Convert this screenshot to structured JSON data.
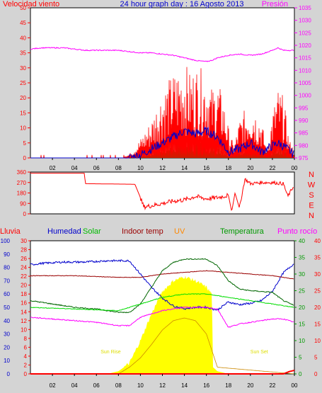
{
  "chart_data": [
    {
      "type": "line",
      "panel": "top",
      "title": "24 hour graph day : 16 Agosto 2013",
      "left_label": "Velocidad viento",
      "right_label": "Presión",
      "x_ticks": [
        "02",
        "04",
        "06",
        "08",
        "10",
        "12",
        "14",
        "16",
        "18",
        "20",
        "22",
        "00"
      ],
      "left_ticks": [
        "0",
        "5",
        "10",
        "15",
        "20",
        "25",
        "30",
        "35",
        "40",
        "45",
        "50"
      ],
      "right_ticks": [
        "975",
        "980",
        "985",
        "990",
        "995",
        "1000",
        "1005",
        "1010",
        "1015",
        "1020",
        "1025",
        "1030",
        "1035"
      ],
      "ylim_left": [
        0,
        50
      ],
      "ylim_right": [
        975,
        1035
      ],
      "colors": {
        "gust": "#ff0000",
        "wind": "#0000cc",
        "calm": "#009900",
        "pressure": "#ff00ff"
      },
      "series": [
        {
          "key": "pressure",
          "x": [
            0,
            1,
            2,
            3,
            4,
            5,
            6,
            7,
            8,
            9,
            10,
            11,
            12,
            13,
            14,
            15,
            15.5,
            16,
            16.5,
            17,
            18,
            19,
            20,
            21,
            22,
            22.5,
            23,
            24
          ],
          "values": [
            1018.5,
            1019,
            1019,
            1019,
            1018.5,
            1018,
            1018,
            1018,
            1018,
            1017.5,
            1017,
            1017,
            1016.5,
            1016,
            1015,
            1014,
            1013.7,
            1013.5,
            1014,
            1015,
            1016,
            1016.5,
            1016,
            1016.5,
            1018,
            1019,
            1018,
            1018
          ]
        },
        {
          "key": "gust",
          "x": [
            0,
            8,
            9,
            9.5,
            10,
            11,
            12,
            13,
            14,
            14.5,
            15,
            16,
            16.5,
            17,
            17.5,
            18,
            18.5,
            19,
            20,
            21,
            21.5,
            22,
            22.5,
            23,
            23.5,
            24
          ],
          "values": [
            0,
            0,
            1,
            3,
            5,
            10,
            18,
            22,
            25,
            22,
            24,
            22,
            18,
            20,
            16,
            8,
            3,
            10,
            15,
            10,
            2,
            12,
            18,
            16,
            5,
            2
          ]
        },
        {
          "key": "wind",
          "x": [
            0,
            9,
            10,
            11,
            12,
            13,
            14,
            15,
            16,
            17,
            18,
            19,
            20,
            21,
            22,
            22.5,
            23,
            24
          ],
          "values": [
            0,
            0,
            1,
            3,
            5,
            7,
            9,
            8,
            9,
            7,
            2,
            3,
            5,
            2,
            4,
            5,
            4,
            1
          ]
        },
        {
          "key": "calm",
          "x": [
            0,
            9.5,
            10,
            11,
            12,
            13,
            14,
            15,
            16,
            17,
            18,
            19,
            20,
            21,
            22,
            23,
            24
          ],
          "values": [
            0,
            0,
            0.5,
            1.5,
            3,
            4,
            5,
            5,
            4,
            3,
            1,
            2,
            2.5,
            1,
            2,
            3,
            0
          ]
        }
      ]
    },
    {
      "type": "line",
      "panel": "direction",
      "left_ticks": [
        "360",
        "270",
        "180",
        "90",
        "0"
      ],
      "right_labels": [
        "N",
        "W",
        "S",
        "E",
        "N"
      ],
      "ylim": [
        0,
        360
      ],
      "color": "#ff0000",
      "series": [
        {
          "key": "wind_dir",
          "x": [
            0,
            4.9,
            5,
            9.5,
            10,
            10.3,
            11,
            12,
            13,
            14,
            15,
            16,
            17,
            18,
            18.3,
            18.6,
            19,
            19.5,
            20,
            21,
            22,
            23,
            23.4,
            23.7,
            24
          ],
          "values": [
            350,
            350,
            260,
            255,
            140,
            60,
            70,
            90,
            110,
            120,
            150,
            130,
            140,
            160,
            20,
            180,
            50,
            300,
            260,
            270,
            270,
            260,
            150,
            200,
            250
          ]
        }
      ]
    },
    {
      "type": "line",
      "panel": "bottom",
      "top_labels": [
        "Lluvia",
        "Humedad",
        "Solar",
        "Indoor temp",
        "UV",
        "Temperatura",
        "Punto rocío"
      ],
      "humidity_ticks": [
        "0",
        "10",
        "20",
        "30",
        "40",
        "50",
        "60",
        "70",
        "80",
        "90",
        "100"
      ],
      "rain_ticks": [
        "0",
        "2",
        "4",
        "6",
        "8",
        "10",
        "12",
        "14",
        "16",
        "18",
        "20",
        "22",
        "24",
        "26",
        "28",
        "30"
      ],
      "temp_ticks": [
        "0",
        "5",
        "10",
        "15",
        "20",
        "25",
        "30",
        "35",
        "40"
      ],
      "annotations": [
        {
          "text": "Sun Rise",
          "x": 7.3
        },
        {
          "text": "Sun Set",
          "x": 20.8
        }
      ],
      "colors": {
        "humidity": "#0000cc",
        "solar": "#00dd00",
        "indoor": "#990000",
        "uv": "#ffff00",
        "temperature": "#006600",
        "dewpoint": "#ff00ff",
        "rain": "#ff0000"
      },
      "series": [
        {
          "key": "solar_area",
          "unit": "percent",
          "x": [
            0,
            7,
            8,
            9,
            10,
            11,
            12,
            13,
            14,
            15,
            16,
            16.5,
            16.6,
            17,
            18,
            24
          ],
          "values": [
            0,
            0,
            2,
            8,
            25,
            45,
            62,
            70,
            73,
            70,
            65,
            60,
            5,
            2,
            0,
            0
          ]
        },
        {
          "key": "uv",
          "unit": "percent",
          "x": [
            0,
            8,
            9,
            10,
            11,
            12,
            13,
            14,
            15,
            16,
            17,
            24
          ],
          "values": [
            0,
            0,
            5,
            12,
            22,
            33,
            40,
            42,
            40,
            30,
            5,
            0
          ]
        },
        {
          "key": "humidity",
          "unit": "%",
          "x": [
            0,
            1,
            3,
            5,
            7,
            9,
            10,
            11,
            12,
            13,
            14,
            15,
            16,
            17,
            18,
            19,
            20,
            21,
            22,
            23,
            24
          ],
          "values": [
            82,
            83,
            84,
            84,
            85,
            85,
            75,
            65,
            57,
            51,
            49,
            50,
            50,
            48,
            54,
            52,
            53,
            55,
            62,
            76,
            83
          ]
        },
        {
          "key": "indoor_temp",
          "unit": "C",
          "x": [
            0,
            4,
            8,
            10,
            12,
            14,
            16,
            18,
            20,
            22,
            24
          ],
          "values": [
            29.5,
            29.5,
            29,
            29,
            30,
            30.5,
            31,
            30.5,
            30,
            29.5,
            28.5
          ]
        },
        {
          "key": "temperature",
          "unit": "C",
          "x": [
            0,
            2,
            4,
            6,
            8,
            9,
            10,
            11,
            12,
            13,
            14,
            16,
            17,
            18,
            19,
            20,
            22,
            23,
            24
          ],
          "values": [
            22,
            21,
            20,
            19.5,
            18.5,
            18.5,
            21,
            26,
            31,
            33.5,
            34.5,
            34.5,
            32.5,
            28,
            25.5,
            25,
            24.5,
            22,
            20.5
          ]
        },
        {
          "key": "solar_line",
          "unit": "C",
          "x": [
            0,
            4,
            8,
            10,
            12,
            14,
            16,
            18,
            20,
            22,
            24
          ],
          "values": [
            20,
            19.5,
            19,
            21,
            23,
            24,
            24,
            23,
            22,
            21,
            20
          ]
        },
        {
          "key": "dewpoint",
          "unit": "C",
          "x": [
            0,
            2,
            4,
            6,
            8,
            9,
            10,
            12,
            14,
            16,
            17,
            18,
            19,
            20,
            22,
            23,
            24
          ],
          "values": [
            17,
            16.5,
            16,
            15.5,
            14.5,
            14.5,
            17,
            19,
            20,
            20,
            19.5,
            14,
            15,
            15.5,
            16.5,
            16.5,
            15.5
          ]
        },
        {
          "key": "rain",
          "unit": "mm",
          "x": [
            0,
            23,
            23.5,
            24
          ],
          "values": [
            0,
            0,
            0.5,
            0.8
          ]
        }
      ]
    }
  ]
}
